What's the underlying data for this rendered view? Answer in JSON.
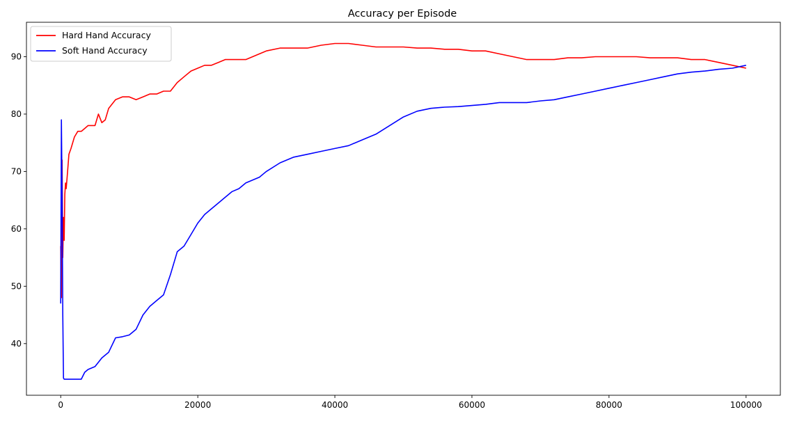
{
  "chart_data": {
    "type": "line",
    "title": "Accuracy per Episode",
    "xlabel": "",
    "ylabel": "",
    "xlim": [
      -5000,
      105000
    ],
    "ylim": [
      31,
      96
    ],
    "xticks": [
      0,
      20000,
      40000,
      60000,
      80000,
      100000
    ],
    "yticks": [
      40,
      50,
      60,
      70,
      80,
      90
    ],
    "grid": false,
    "legend_position": "top-left",
    "series": [
      {
        "name": "Hard Hand Accuracy",
        "color": "#ff0000",
        "x": [
          0,
          100,
          200,
          300,
          400,
          500,
          600,
          700,
          800,
          1000,
          1200,
          1500,
          2000,
          2500,
          3000,
          3500,
          4000,
          5000,
          5500,
          6000,
          6500,
          7000,
          8000,
          9000,
          10000,
          11000,
          12000,
          13000,
          14000,
          15000,
          16000,
          17000,
          18000,
          19000,
          20000,
          21000,
          22000,
          23000,
          24000,
          25000,
          26000,
          27000,
          28000,
          29000,
          30000,
          32000,
          34000,
          36000,
          38000,
          40000,
          42000,
          44000,
          46000,
          48000,
          50000,
          52000,
          54000,
          56000,
          58000,
          60000,
          62000,
          64000,
          66000,
          68000,
          70000,
          72000,
          74000,
          76000,
          78000,
          80000,
          82000,
          84000,
          86000,
          88000,
          90000,
          92000,
          94000,
          96000,
          98000,
          100000
        ],
        "y": [
          57,
          48,
          72,
          55,
          62,
          58,
          66,
          68,
          67,
          70,
          73,
          74,
          76,
          77,
          77,
          77.5,
          78,
          78,
          80,
          78.5,
          79,
          81,
          82.5,
          83,
          83,
          82.5,
          83,
          83.5,
          83.5,
          84,
          84,
          85.5,
          86.5,
          87.5,
          88,
          88.5,
          88.5,
          89,
          89.5,
          89.5,
          89.5,
          89.5,
          90,
          90.5,
          91,
          91.5,
          91.5,
          91.5,
          92,
          92.3,
          92.3,
          92,
          91.7,
          91.7,
          91.7,
          91.5,
          91.5,
          91.3,
          91.3,
          91,
          91,
          90.5,
          90,
          89.5,
          89.5,
          89.5,
          89.8,
          89.8,
          90,
          90,
          90,
          90,
          89.8,
          89.8,
          89.8,
          89.5,
          89.5,
          89,
          88.5,
          88
        ]
      },
      {
        "name": "Soft Hand Accuracy",
        "color": "#0000ff",
        "x": [
          0,
          100,
          200,
          300,
          400,
          500,
          1000,
          2000,
          3000,
          3500,
          4000,
          5000,
          6000,
          7000,
          8000,
          9000,
          10000,
          11000,
          12000,
          13000,
          14000,
          15000,
          16000,
          17000,
          18000,
          19000,
          20000,
          21000,
          22000,
          23000,
          24000,
          25000,
          26000,
          27000,
          28000,
          29000,
          30000,
          32000,
          34000,
          36000,
          38000,
          40000,
          42000,
          44000,
          46000,
          48000,
          50000,
          52000,
          54000,
          56000,
          58000,
          60000,
          62000,
          64000,
          66000,
          68000,
          70000,
          72000,
          74000,
          76000,
          78000,
          80000,
          82000,
          84000,
          86000,
          88000,
          90000,
          92000,
          94000,
          96000,
          98000,
          100000
        ],
        "y": [
          47,
          79,
          66,
          45,
          34,
          33.8,
          33.8,
          33.8,
          33.8,
          35,
          35.5,
          36,
          37.5,
          38.5,
          41,
          41.2,
          41.5,
          42.5,
          45,
          46.5,
          47.5,
          48.5,
          52,
          56,
          57,
          59,
          61,
          62.5,
          63.5,
          64.5,
          65.5,
          66.5,
          67,
          68,
          68.5,
          69,
          70,
          71.5,
          72.5,
          73,
          73.5,
          74,
          74.5,
          75.5,
          76.5,
          78,
          79.5,
          80.5,
          81,
          81.2,
          81.3,
          81.5,
          81.7,
          82,
          82,
          82,
          82.3,
          82.5,
          83,
          83.5,
          84,
          84.5,
          85,
          85.5,
          86,
          86.5,
          87,
          87.3,
          87.5,
          87.8,
          88,
          88.5
        ]
      }
    ]
  }
}
